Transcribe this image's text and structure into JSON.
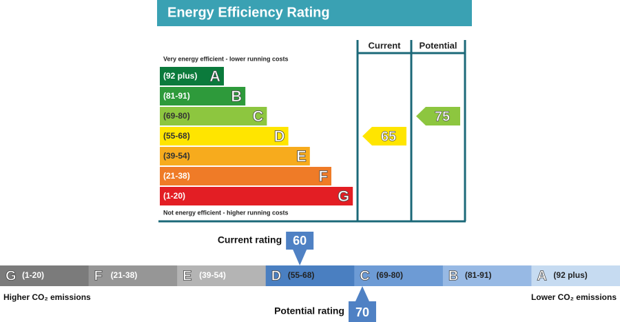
{
  "title": "Energy Efficiency Rating",
  "columns": [
    "Current",
    "Potential"
  ],
  "top_note": "Very energy efficient - lower running costs",
  "bottom_note": "Not energy efficient - higher running costs",
  "bands": [
    {
      "range": "(92 plus)",
      "letter": "A",
      "color": "#0b7a3c"
    },
    {
      "range": "(81-91)",
      "letter": "B",
      "color": "#2e9a3b"
    },
    {
      "range": "(69-80)",
      "letter": "C",
      "color": "#8dc63f"
    },
    {
      "range": "(55-68)",
      "letter": "D",
      "color": "#ffe500"
    },
    {
      "range": "(39-54)",
      "letter": "E",
      "color": "#f7ab1d"
    },
    {
      "range": "(21-38)",
      "letter": "F",
      "color": "#ef7b27"
    },
    {
      "range": "(1-20)",
      "letter": "G",
      "color": "#e31e24"
    }
  ],
  "current": 65,
  "potential": 75,
  "co2": {
    "bands": [
      {
        "letter": "G",
        "range": "(1-20)",
        "color": "#7b7b7b"
      },
      {
        "letter": "F",
        "range": "(21-38)",
        "color": "#969696"
      },
      {
        "letter": "E",
        "range": "(39-54)",
        "color": "#b4b4b4"
      },
      {
        "letter": "D",
        "range": "(55-68)",
        "color": "#4a7fc1"
      },
      {
        "letter": "C",
        "range": "(69-80)",
        "color": "#6d9bd5"
      },
      {
        "letter": "B",
        "range": "(81-91)",
        "color": "#97b9e4"
      },
      {
        "letter": "A",
        "range": "(92 plus)",
        "color": "#c6dbf1"
      }
    ],
    "high_label": "Higher CO₂ emissions",
    "low_label": "Lower CO₂ emissions",
    "current_label": "Current rating",
    "current": 60,
    "potential_label": "Potential rating",
    "potential": 70,
    "marker_color": "#4f81c4"
  }
}
